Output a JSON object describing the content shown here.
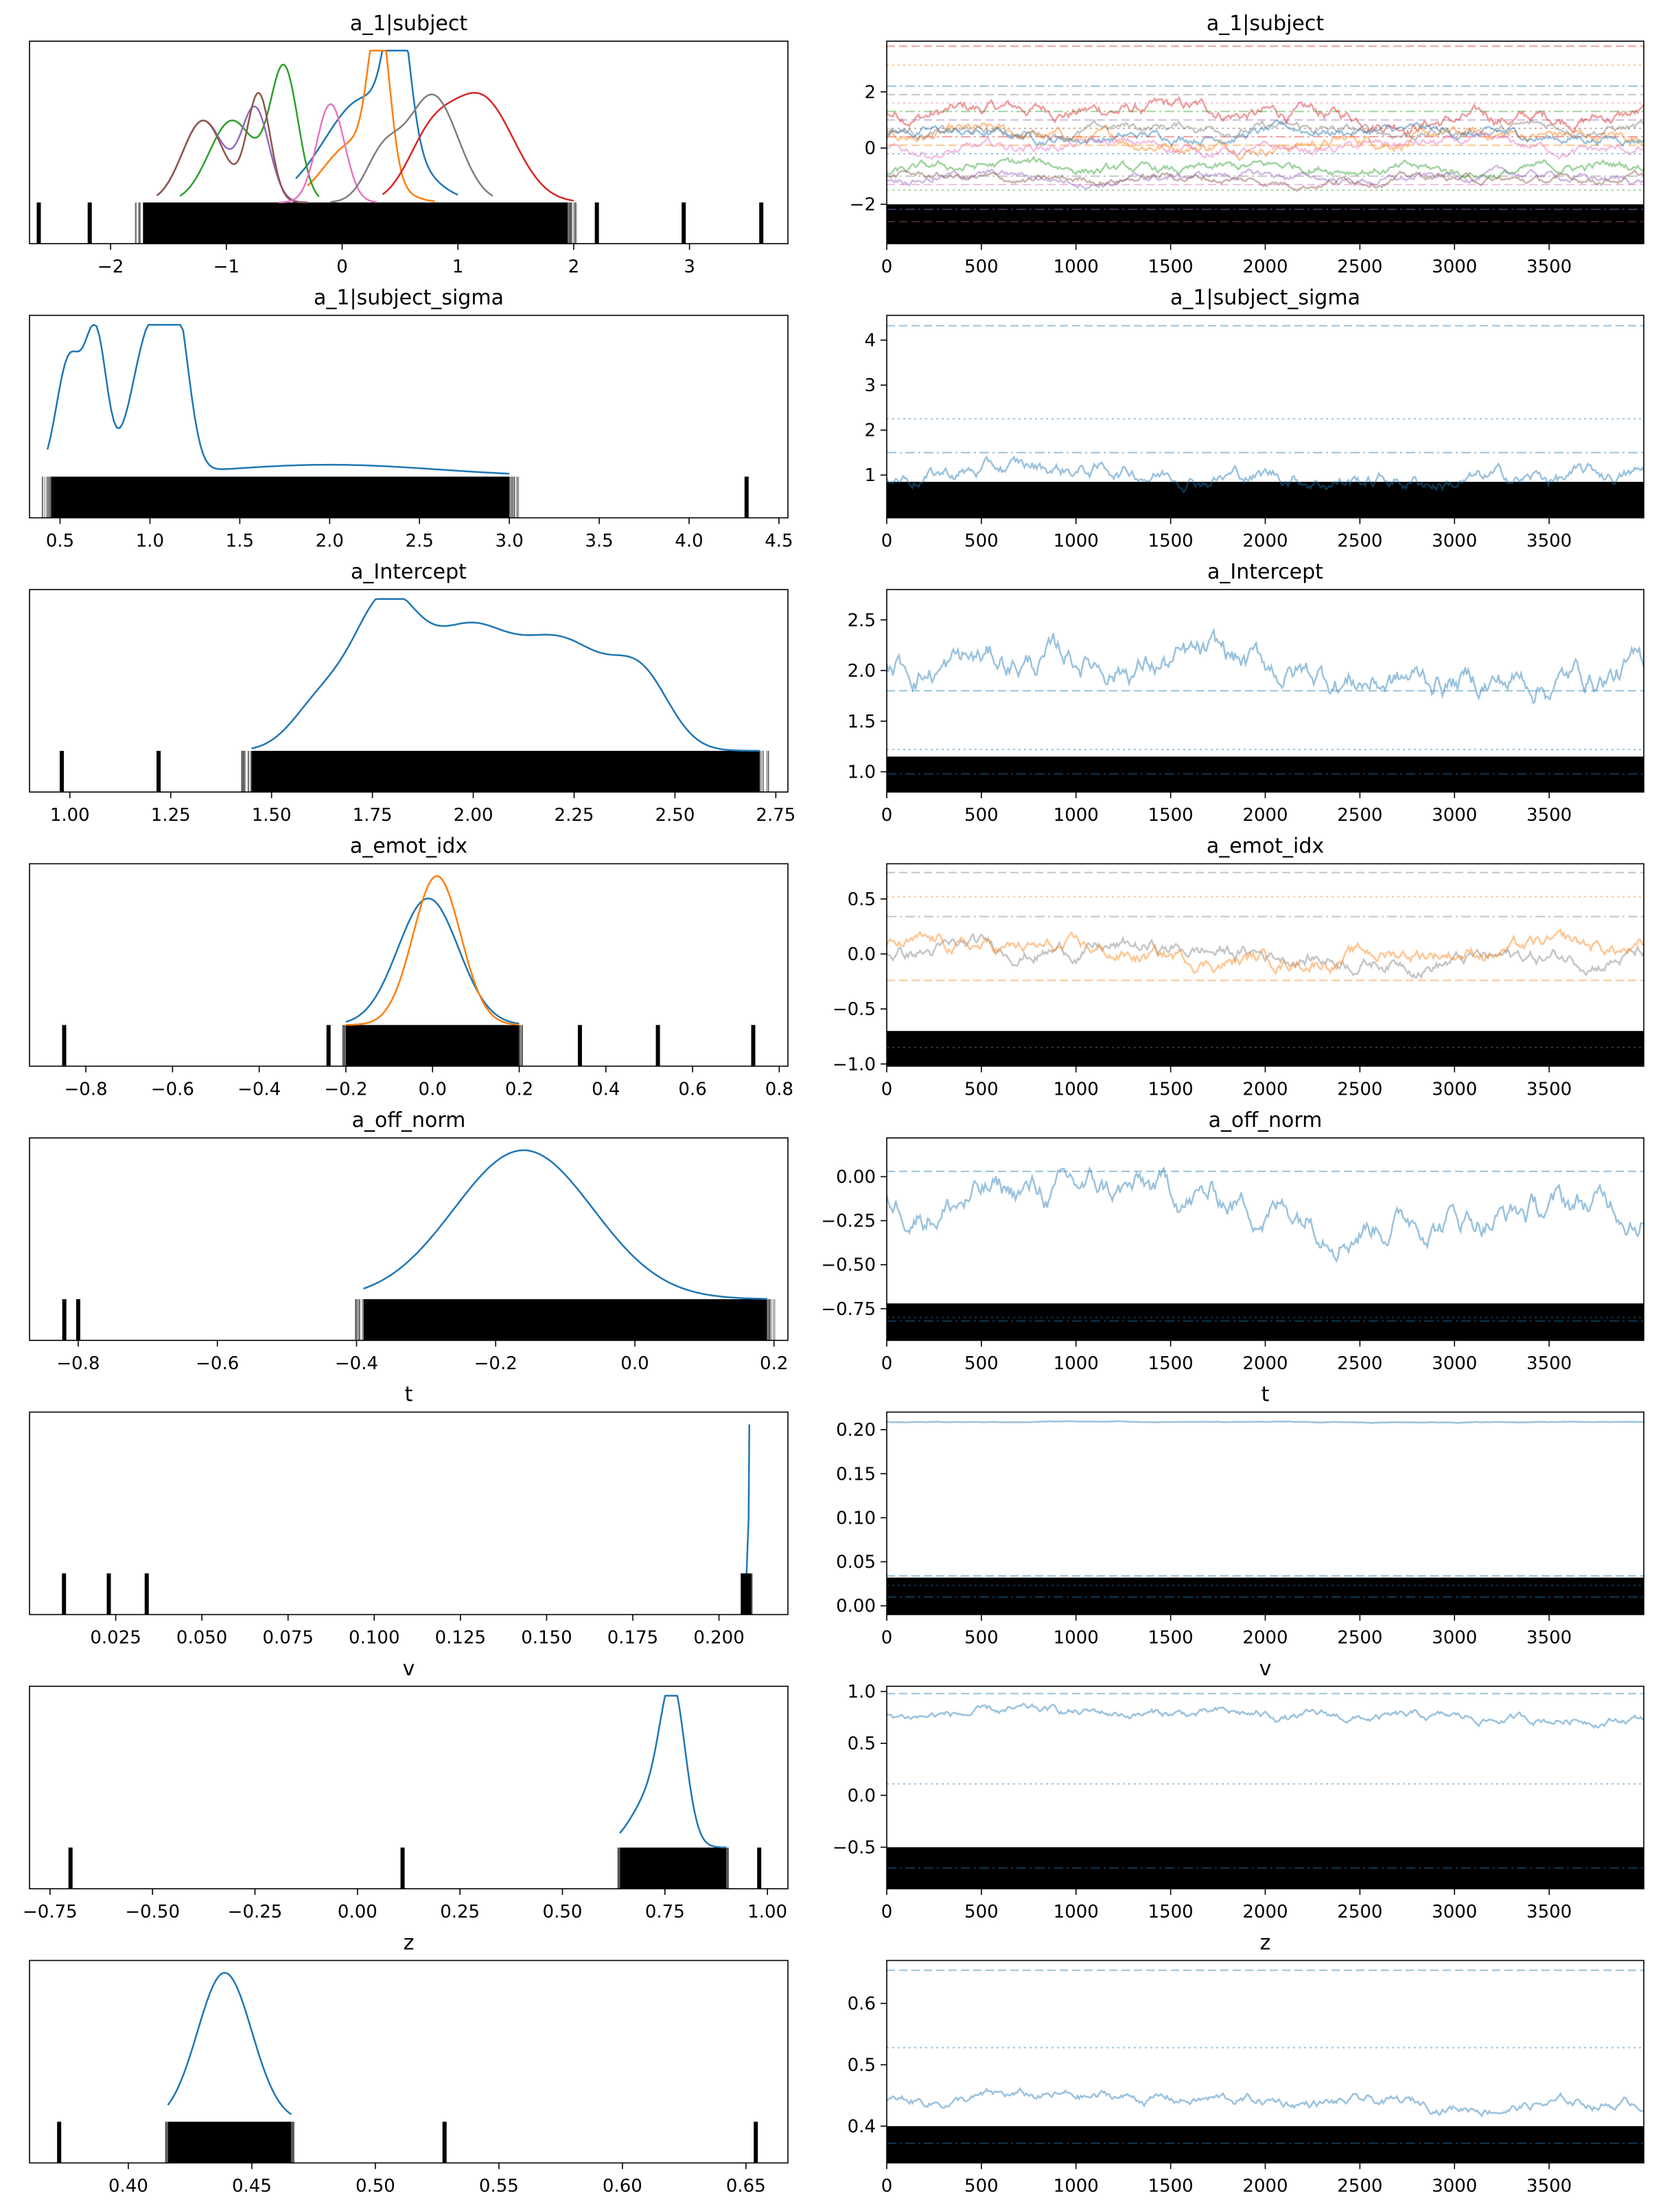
{
  "chart_data": [
    {
      "type": "density",
      "title": "a_1|subject",
      "xlim": [
        -2.7,
        3.85
      ],
      "xticks": [
        -2,
        -1,
        0,
        1,
        2,
        3
      ],
      "ylim": [
        0,
        1
      ],
      "series": [
        {
          "color": "#1f77b4",
          "peaks": [
            [
              0.2,
              0.35,
              0.7
            ],
            [
              0.48,
              0.1,
              0.92
            ]
          ],
          "range": [
            -0.4,
            1.0
          ]
        },
        {
          "color": "#ff7f0e",
          "peaks": [
            [
              0.32,
              0.09,
              1.0
            ],
            [
              0.1,
              0.25,
              0.4
            ]
          ],
          "range": [
            -0.3,
            0.8
          ]
        },
        {
          "color": "#2ca02c",
          "peaks": [
            [
              -0.5,
              0.12,
              0.88
            ],
            [
              -0.95,
              0.2,
              0.55
            ]
          ],
          "range": [
            -1.4,
            -0.2
          ]
        },
        {
          "color": "#d62728",
          "peaks": [
            [
              1.2,
              0.28,
              0.7
            ],
            [
              0.75,
              0.2,
              0.35
            ]
          ],
          "range": [
            0.35,
            2.0
          ]
        },
        {
          "color": "#9467bd",
          "peaks": [
            [
              -0.75,
              0.12,
              0.62
            ],
            [
              -1.2,
              0.18,
              0.55
            ]
          ],
          "range": [
            -1.6,
            -0.3
          ]
        },
        {
          "color": "#8c564b",
          "peaks": [
            [
              -0.72,
              0.1,
              0.72
            ],
            [
              -1.2,
              0.18,
              0.55
            ]
          ],
          "range": [
            -1.6,
            -0.3
          ]
        },
        {
          "color": "#e377c2",
          "peaks": [
            [
              -0.1,
              0.12,
              0.66
            ]
          ],
          "range": [
            -0.55,
            0.3
          ]
        },
        {
          "color": "#7f7f7f",
          "peaks": [
            [
              0.78,
              0.22,
              0.72
            ],
            [
              0.35,
              0.15,
              0.3
            ]
          ],
          "range": [
            -0.1,
            1.3
          ]
        }
      ],
      "rug_range": [
        -1.72,
        1.95
      ],
      "ticks": [
        -2.62,
        -2.18,
        2.2,
        2.95,
        3.62
      ]
    },
    {
      "type": "trace",
      "title": "a_1|subject",
      "xlim": [
        0,
        4000
      ],
      "ylim": [
        -3.4,
        3.8
      ],
      "yticks": [
        -2,
        0,
        2
      ],
      "xticks": [
        0,
        500,
        1000,
        1500,
        2000,
        2500,
        3000,
        3500
      ],
      "lines": [
        {
          "color": "#d62728",
          "level": 1.2,
          "amp": 0.35
        },
        {
          "color": "#ff7f0e",
          "level": 0.3,
          "amp": 0.3
        },
        {
          "color": "#1f77b4",
          "level": 0.5,
          "amp": 0.25
        },
        {
          "color": "#7f7f7f",
          "level": 0.65,
          "amp": 0.25
        },
        {
          "color": "#e377c2",
          "level": 0.0,
          "amp": 0.25
        },
        {
          "color": "#2ca02c",
          "level": -0.75,
          "amp": 0.25
        },
        {
          "color": "#9467bd",
          "level": -1.05,
          "amp": 0.2
        },
        {
          "color": "#8c564b",
          "level": -1.1,
          "amp": 0.2
        }
      ],
      "hlines": [
        3.62,
        2.95,
        2.2,
        1.9,
        1.6,
        1.3,
        1.0,
        0.7,
        0.4,
        0.1,
        -0.2,
        -1.0,
        -1.3,
        -1.5,
        -2.18,
        -2.62
      ],
      "band": [
        -3.4,
        -2.0
      ]
    },
    {
      "type": "density",
      "title": "a_1|subject_sigma",
      "xlim": [
        0.33,
        4.55
      ],
      "xticks": [
        0.5,
        1.0,
        1.5,
        2.0,
        2.5,
        3.0,
        3.5,
        4.0,
        4.5
      ],
      "series": [
        {
          "color": "#1f77b4",
          "peaks": [
            [
              0.55,
              0.07,
              0.78
            ],
            [
              0.7,
              0.06,
              0.92
            ],
            [
              1.0,
              0.1,
              0.95
            ],
            [
              1.15,
              0.07,
              0.88
            ],
            [
              2.0,
              0.6,
              0.08
            ]
          ],
          "range": [
            0.43,
            3.0
          ]
        }
      ],
      "rug_range": [
        0.45,
        3.0
      ],
      "ticks": [
        4.32
      ]
    },
    {
      "type": "trace",
      "title": "a_1|subject_sigma",
      "xlim": [
        0,
        4000
      ],
      "ylim": [
        0.05,
        4.55
      ],
      "yticks": [
        1,
        2,
        3,
        4
      ],
      "xticks": [
        0,
        500,
        1000,
        1500,
        2000,
        2500,
        3000,
        3500
      ],
      "lines": [
        {
          "color": "#1f77b4",
          "level": 1.0,
          "amp": 0.25
        }
      ],
      "hlines": [
        4.32,
        2.25,
        1.5
      ],
      "band": [
        0.05,
        0.85
      ]
    },
    {
      "type": "density",
      "title": "a_Intercept",
      "xlim": [
        0.9,
        2.78
      ],
      "xticks": [
        1.0,
        1.25,
        1.5,
        1.75,
        2.0,
        2.25,
        2.5,
        2.75
      ],
      "series": [
        {
          "color": "#1f77b4",
          "peaks": [
            [
              1.78,
              0.08,
              0.95
            ],
            [
              1.98,
              0.1,
              0.72
            ],
            [
              2.22,
              0.12,
              0.72
            ],
            [
              2.42,
              0.07,
              0.4
            ],
            [
              1.62,
              0.07,
              0.3
            ]
          ],
          "range": [
            1.45,
            2.71
          ]
        }
      ],
      "rug_range": [
        1.45,
        2.71
      ],
      "ticks": [
        0.98,
        1.22
      ]
    },
    {
      "type": "trace",
      "title": "a_Intercept",
      "xlim": [
        0,
        4000
      ],
      "ylim": [
        0.8,
        2.8
      ],
      "yticks": [
        1.0,
        1.5,
        2.0,
        2.5
      ],
      "xticks": [
        0,
        500,
        1000,
        1500,
        2000,
        2500,
        3000,
        3500
      ],
      "lines": [
        {
          "color": "#1f77b4",
          "level": 2.0,
          "amp": 0.2
        }
      ],
      "hlines": [
        1.8,
        1.22,
        0.98
      ],
      "band": [
        0.8,
        1.15
      ]
    },
    {
      "type": "density",
      "title": "a_emot_idx",
      "xlim": [
        -0.93,
        0.82
      ],
      "xticks": [
        -0.8,
        -0.6,
        -0.4,
        -0.2,
        0.0,
        0.2,
        0.4,
        0.6,
        0.8
      ],
      "series": [
        {
          "color": "#1f77b4",
          "peaks": [
            [
              -0.01,
              0.07,
              0.85
            ]
          ],
          "range": [
            -0.2,
            0.2
          ]
        },
        {
          "color": "#ff7f0e",
          "peaks": [
            [
              0.01,
              0.055,
              1.0
            ]
          ],
          "range": [
            -0.2,
            0.2
          ]
        }
      ],
      "rug_range": [
        -0.2,
        0.2
      ],
      "ticks": [
        -0.85,
        -0.24,
        0.34,
        0.52,
        0.74
      ]
    },
    {
      "type": "trace",
      "title": "a_emot_idx",
      "xlim": [
        0,
        4000
      ],
      "ylim": [
        -1.02,
        0.82
      ],
      "yticks": [
        -1.0,
        -0.5,
        0.0,
        0.5
      ],
      "xticks": [
        0,
        500,
        1000,
        1500,
        2000,
        2500,
        3000,
        3500
      ],
      "lines": [
        {
          "color": "#7f7f7f",
          "level": 0.0,
          "amp": 0.1
        },
        {
          "color": "#ff7f0e",
          "level": 0.0,
          "amp": 0.1
        }
      ],
      "hlines": [
        0.74,
        0.52,
        0.34,
        -0.24,
        -0.85
      ],
      "band": [
        -1.02,
        -0.7
      ]
    },
    {
      "type": "density",
      "title": "a_off_norm",
      "xlim": [
        -0.87,
        0.22
      ],
      "xticks": [
        -0.8,
        -0.6,
        -0.4,
        -0.2,
        0.0,
        0.2
      ],
      "series": [
        {
          "color": "#1f77b4",
          "peaks": [
            [
              -0.16,
              0.1,
              1.0
            ]
          ],
          "range": [
            -0.39,
            0.19
          ]
        }
      ],
      "rug_range": [
        -0.39,
        0.19
      ],
      "ticks": [
        -0.82,
        -0.8
      ]
    },
    {
      "type": "trace",
      "title": "a_off_norm",
      "xlim": [
        0,
        4000
      ],
      "ylim": [
        -0.93,
        0.22
      ],
      "yticks": [
        -0.75,
        -0.5,
        -0.25,
        0.0
      ],
      "xticks": [
        0,
        500,
        1000,
        1500,
        2000,
        2500,
        3000,
        3500
      ],
      "lines": [
        {
          "color": "#1f77b4",
          "level": -0.15,
          "amp": 0.12
        }
      ],
      "hlines": [
        0.03,
        -0.8,
        -0.82
      ],
      "band": [
        -0.93,
        -0.72
      ]
    },
    {
      "type": "density",
      "title": "t",
      "xlim": [
        0.0,
        0.22
      ],
      "xticks": [
        0.025,
        0.05,
        0.075,
        0.1,
        0.125,
        0.15,
        0.175,
        0.2
      ],
      "series": [
        {
          "color": "#1f77b4",
          "spike": 0.2088
        }
      ],
      "rug_range": [
        0.2065,
        0.2095
      ],
      "ticks": [
        0.01,
        0.023,
        0.034,
        0.207,
        0.208
      ]
    },
    {
      "type": "trace",
      "title": "t",
      "xlim": [
        0,
        4000
      ],
      "ylim": [
        -0.01,
        0.22
      ],
      "yticks": [
        0.0,
        0.05,
        0.1,
        0.15,
        0.2
      ],
      "xticks": [
        0,
        500,
        1000,
        1500,
        2000,
        2500,
        3000,
        3500
      ],
      "lines": [
        {
          "color": "#1f77b4",
          "level": 0.2088,
          "amp": 0.0005
        }
      ],
      "hlines": [
        0.034,
        0.023,
        0.01
      ],
      "band": [
        -0.01,
        0.032
      ]
    },
    {
      "type": "density",
      "title": "v",
      "xlim": [
        -0.8,
        1.05
      ],
      "xticks": [
        -0.75,
        -0.5,
        -0.25,
        0.0,
        0.25,
        0.5,
        0.75,
        1.0
      ],
      "series": [
        {
          "color": "#1f77b4",
          "peaks": [
            [
              0.77,
              0.03,
              0.9
            ],
            [
              0.72,
              0.05,
              0.35
            ]
          ],
          "range": [
            0.64,
            0.9
          ]
        }
      ],
      "rug_range": [
        0.64,
        0.9
      ],
      "ticks": [
        -0.7,
        0.11,
        0.98
      ]
    },
    {
      "type": "trace",
      "title": "v",
      "xlim": [
        0,
        4000
      ],
      "ylim": [
        -0.9,
        1.05
      ],
      "yticks": [
        -0.5,
        0.0,
        0.5,
        1.0
      ],
      "xticks": [
        0,
        500,
        1000,
        1500,
        2000,
        2500,
        3000,
        3500
      ],
      "lines": [
        {
          "color": "#1f77b4",
          "level": 0.76,
          "amp": 0.06
        }
      ],
      "hlines": [
        0.98,
        0.11,
        -0.7
      ],
      "band": [
        -0.9,
        -0.5
      ]
    },
    {
      "type": "density",
      "title": "z",
      "xlim": [
        0.36,
        0.667
      ],
      "xticks": [
        0.4,
        0.45,
        0.5,
        0.55,
        0.6,
        0.65
      ],
      "series": [
        {
          "color": "#1f77b4",
          "peaks": [
            [
              0.439,
              0.011,
              1.0
            ]
          ],
          "range": [
            0.416,
            0.466
          ]
        }
      ],
      "rug_range": [
        0.416,
        0.466
      ],
      "ticks": [
        0.372,
        0.528,
        0.654
      ]
    },
    {
      "type": "trace",
      "title": "z",
      "xlim": [
        0,
        4000
      ],
      "ylim": [
        0.34,
        0.67
      ],
      "yticks": [
        0.4,
        0.5,
        0.6
      ],
      "xticks": [
        0,
        500,
        1000,
        1500,
        2000,
        2500,
        3000,
        3500
      ],
      "lines": [
        {
          "color": "#1f77b4",
          "level": 0.44,
          "amp": 0.012
        }
      ],
      "hlines": [
        0.654,
        0.528,
        0.372
      ],
      "band": [
        0.34,
        0.4
      ]
    }
  ]
}
